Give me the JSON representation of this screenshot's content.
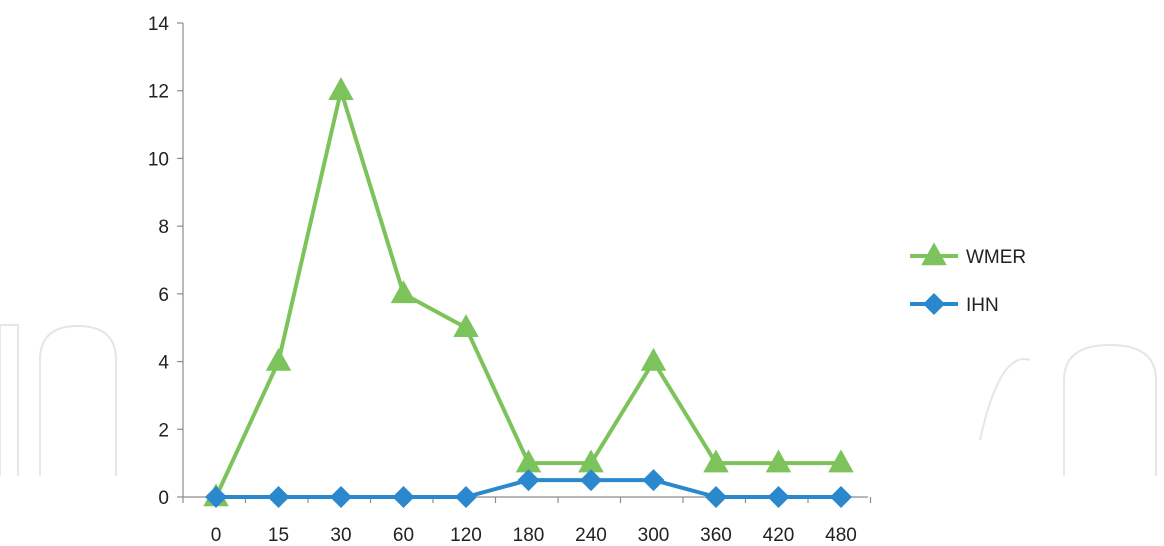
{
  "chart_data": {
    "type": "line",
    "categories": [
      "0",
      "15",
      "30",
      "60",
      "120",
      "180",
      "240",
      "300",
      "360",
      "420",
      "480"
    ],
    "ylim": [
      0,
      14
    ],
    "yticks": [
      0,
      2,
      4,
      6,
      8,
      10,
      12,
      14
    ],
    "grid": false,
    "legend_position": "right",
    "series": [
      {
        "name": "WMER",
        "color": "#7dc35b",
        "marker": "triangle",
        "values": [
          0,
          4,
          12,
          6,
          5,
          1,
          1,
          4,
          1,
          1,
          1
        ]
      },
      {
        "name": "IHN",
        "color": "#2b88cc",
        "marker": "diamond",
        "values": [
          0,
          0,
          0,
          0,
          0,
          0.5,
          0.5,
          0.5,
          0,
          0,
          0
        ]
      }
    ]
  }
}
